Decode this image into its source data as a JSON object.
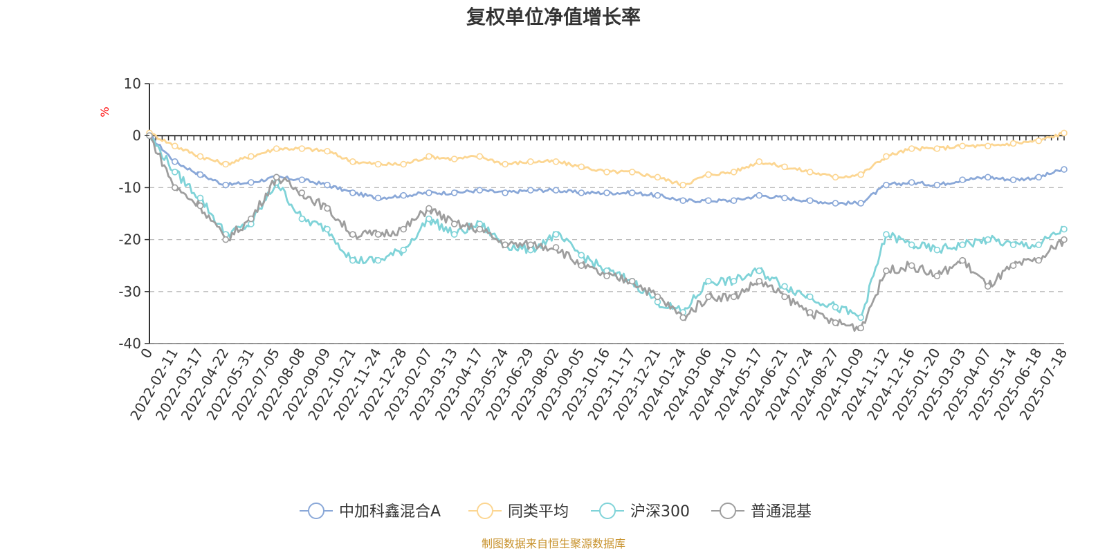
{
  "chart_data": {
    "type": "line",
    "title": "复权单位净值增长率",
    "ylabel": "%",
    "ylim": [
      -40,
      10
    ],
    "yticks": [
      10,
      0,
      -10,
      -20,
      -30,
      -40
    ],
    "grid": true,
    "legend_position": "bottom",
    "categories": [
      "0",
      "2022-02-11",
      "2022-03-17",
      "2022-04-22",
      "2022-05-31",
      "2022-07-05",
      "2022-08-08",
      "2022-09-09",
      "2022-10-21",
      "2022-11-24",
      "2022-12-28",
      "2023-02-07",
      "2023-03-13",
      "2023-04-17",
      "2023-05-24",
      "2023-06-29",
      "2023-08-02",
      "2023-09-05",
      "2023-10-16",
      "2023-11-17",
      "2023-12-21",
      "2024-01-24",
      "2024-03-06",
      "2024-04-10",
      "2024-05-17",
      "2024-06-21",
      "2024-07-24",
      "2024-08-27",
      "2024-10-09",
      "2024-11-12",
      "2024-12-16",
      "2025-01-20",
      "2025-03-03",
      "2025-04-07",
      "2025-05-14",
      "2025-06-18",
      "2025-07-18"
    ],
    "series": [
      {
        "name": "中加科鑫混合A",
        "color": "#8aa8d8",
        "values": [
          0,
          -5,
          -7.5,
          -9.5,
          -9,
          -8,
          -8.5,
          -9.5,
          -11,
          -12,
          -11.5,
          -11,
          -11,
          -10.5,
          -11,
          -10.5,
          -10.5,
          -11,
          -11,
          -11,
          -11.5,
          -12.5,
          -12.5,
          -12.5,
          -11.5,
          -12,
          -12.5,
          -13,
          -13,
          -9.5,
          -9,
          -9.5,
          -8.5,
          -8,
          -8.5,
          -8,
          -6.5
        ]
      },
      {
        "name": "同类平均",
        "color": "#fcd692",
        "values": [
          0.5,
          -2,
          -4,
          -5.5,
          -4,
          -2.5,
          -2.5,
          -3,
          -5,
          -5.5,
          -5.5,
          -4,
          -4.5,
          -4,
          -5.5,
          -5,
          -5,
          -6,
          -7,
          -7,
          -8,
          -9.5,
          -7.5,
          -7,
          -5,
          -6,
          -7,
          -8,
          -7.5,
          -4,
          -2.5,
          -2.5,
          -2,
          -2,
          -1.5,
          -1,
          0.5
        ]
      },
      {
        "name": "沪深300",
        "color": "#7fd3d8",
        "values": [
          0,
          -7,
          -12,
          -19,
          -17,
          -9,
          -16,
          -18,
          -24,
          -24,
          -22,
          -16,
          -19,
          -17,
          -21,
          -22,
          -19,
          -23,
          -26,
          -28,
          -32,
          -34,
          -28,
          -28,
          -26,
          -29,
          -31,
          -33,
          -35,
          -19,
          -21,
          -22,
          -21,
          -20,
          -21,
          -21,
          -18
        ]
      },
      {
        "name": "普通混基",
        "color": "#9e9e9e",
        "values": [
          0,
          -10,
          -13.5,
          -20,
          -16,
          -8,
          -11,
          -14,
          -19,
          -19,
          -18,
          -14,
          -17,
          -18,
          -21,
          -21,
          -21.5,
          -25,
          -27,
          -28,
          -31,
          -35,
          -31,
          -31,
          -28,
          -31,
          -34,
          -36,
          -37,
          -26,
          -25,
          -27,
          -24,
          -29,
          -25,
          -24,
          -20
        ]
      }
    ]
  },
  "source_note": "制图数据来自恒生聚源数据库"
}
